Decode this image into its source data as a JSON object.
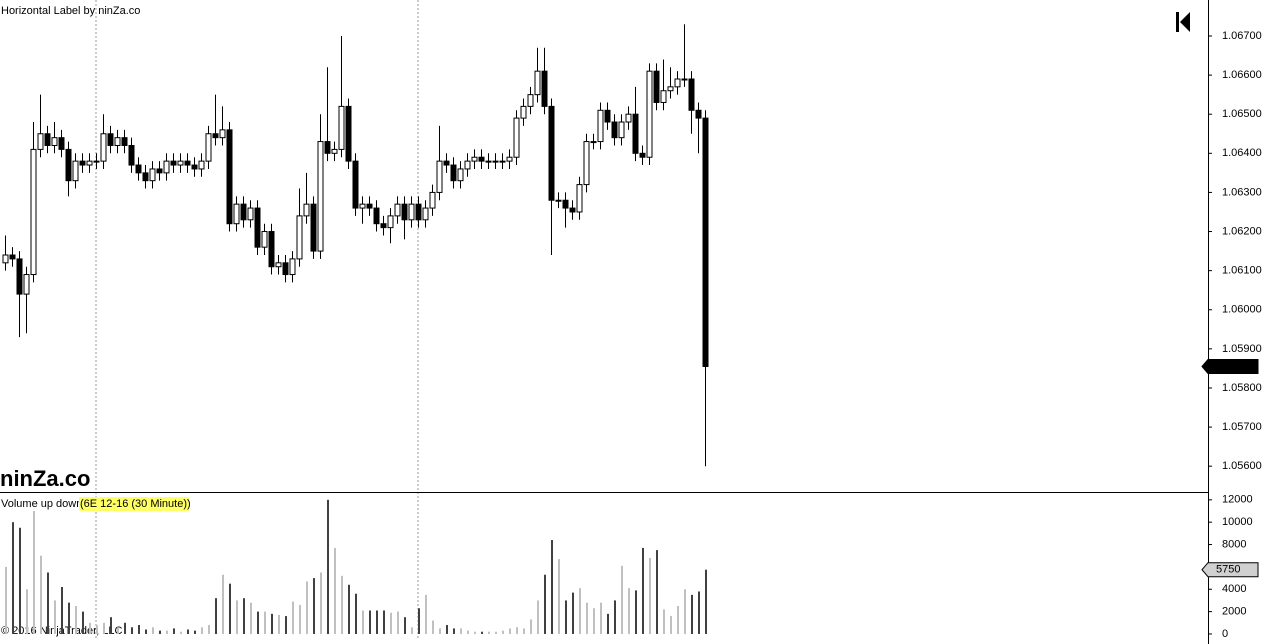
{
  "chart_data": [
    {
      "type": "candlestick",
      "title": "Horizontal Label by ninZa.co",
      "logo": "ninZa.co",
      "footer": "© 2016 NinjaTrader, LLC",
      "up_color": "#ffffff",
      "down_color": "#000000",
      "wick_color": "#000000",
      "ylim": [
        1.05534,
        1.06792
      ],
      "yticks": [
        {
          "value": 1.056,
          "label": "1.05600"
        },
        {
          "value": 1.057,
          "label": "1.05700"
        },
        {
          "value": 1.058,
          "label": "1.05800"
        },
        {
          "value": 1.059,
          "label": "1.05900"
        },
        {
          "value": 1.06,
          "label": "1.06000"
        },
        {
          "value": 1.061,
          "label": "1.06100"
        },
        {
          "value": 1.062,
          "label": "1.06200"
        },
        {
          "value": 1.063,
          "label": "1.06300"
        },
        {
          "value": 1.064,
          "label": "1.06400"
        },
        {
          "value": 1.065,
          "label": "1.06500"
        },
        {
          "value": 1.066,
          "label": "1.06600"
        },
        {
          "value": 1.067,
          "label": "1.06700"
        }
      ],
      "open": [
        1.0612,
        1.0614,
        1.0613,
        1.0604,
        1.0609,
        1.0641,
        1.0645,
        1.0642,
        1.0644,
        1.0641,
        1.0633,
        1.0638,
        1.0637,
        1.0638,
        1.0638,
        1.0645,
        1.0642,
        1.0644,
        1.0642,
        1.0637,
        1.0635,
        1.0633,
        1.0636,
        1.0635,
        1.0638,
        1.0637,
        1.0638,
        1.0637,
        1.0636,
        1.0638,
        1.0645,
        1.0644,
        1.0646,
        1.0622,
        1.0627,
        1.0623,
        1.0626,
        1.0616,
        1.062,
        1.0611,
        1.0612,
        1.0609,
        1.0613,
        1.0624,
        1.0627,
        1.0615,
        1.0643,
        1.064,
        1.0641,
        1.0652,
        1.0638,
        1.0626,
        1.0627,
        1.0626,
        1.0622,
        1.0621,
        1.0624,
        1.0627,
        1.0623,
        1.0627,
        1.0623,
        1.0626,
        1.063,
        1.0638,
        1.0637,
        1.0633,
        1.0636,
        1.0638,
        1.0639,
        1.0638,
        1.0638,
        1.0638,
        1.0638,
        1.0639,
        1.0649,
        1.0652,
        1.0655,
        1.0661,
        1.0652,
        1.0628,
        1.0628,
        1.0626,
        1.0625,
        1.0632,
        1.0643,
        1.0643,
        1.0651,
        1.0648,
        1.0644,
        1.0648,
        1.065,
        1.064,
        1.0639,
        1.0661,
        1.0653,
        1.0656,
        1.0657,
        1.0659,
        1.0659,
        1.0651,
        1.0649
      ],
      "high": [
        1.0619,
        1.0616,
        1.0615,
        1.0611,
        1.0648,
        1.0655,
        1.0647,
        1.0648,
        1.0646,
        1.0643,
        1.064,
        1.064,
        1.064,
        1.064,
        1.065,
        1.0647,
        1.0646,
        1.0646,
        1.0644,
        1.0639,
        1.0637,
        1.0638,
        1.0638,
        1.064,
        1.064,
        1.064,
        1.064,
        1.0639,
        1.064,
        1.0647,
        1.0655,
        1.0652,
        1.0648,
        1.0629,
        1.0629,
        1.0628,
        1.0628,
        1.0622,
        1.0622,
        1.0614,
        1.0614,
        1.0615,
        1.0631,
        1.0635,
        1.0629,
        1.065,
        1.0662,
        1.0643,
        1.067,
        1.0654,
        1.064,
        1.0629,
        1.0629,
        1.0628,
        1.0624,
        1.0626,
        1.0629,
        1.0629,
        1.0629,
        1.0629,
        1.0628,
        1.0632,
        1.0647,
        1.064,
        1.0639,
        1.0638,
        1.064,
        1.0641,
        1.0641,
        1.064,
        1.064,
        1.064,
        1.0641,
        1.0651,
        1.0654,
        1.0657,
        1.0667,
        1.0667,
        1.0654,
        1.063,
        1.063,
        1.0628,
        1.0634,
        1.0645,
        1.0645,
        1.0653,
        1.0653,
        1.065,
        1.065,
        1.0652,
        1.0657,
        1.0642,
        1.0663,
        1.0663,
        1.0664,
        1.0662,
        1.0661,
        1.0673,
        1.0661,
        1.0653,
        1.0651
      ],
      "low": [
        1.061,
        1.0611,
        1.0593,
        1.0594,
        1.0607,
        1.0639,
        1.064,
        1.064,
        1.0639,
        1.0629,
        1.0631,
        1.0635,
        1.0635,
        1.0636,
        1.0636,
        1.064,
        1.064,
        1.064,
        1.0635,
        1.0633,
        1.0631,
        1.0631,
        1.0633,
        1.0633,
        1.0635,
        1.0635,
        1.0635,
        1.0634,
        1.0634,
        1.0636,
        1.0642,
        1.0642,
        1.062,
        1.062,
        1.0621,
        1.0621,
        1.0614,
        1.0614,
        1.0609,
        1.0609,
        1.0607,
        1.0607,
        1.0611,
        1.0622,
        1.0613,
        1.0613,
        1.0638,
        1.0638,
        1.0639,
        1.0636,
        1.0624,
        1.0622,
        1.0624,
        1.062,
        1.0619,
        1.0617,
        1.0622,
        1.0618,
        1.0621,
        1.0621,
        1.0621,
        1.0624,
        1.0628,
        1.0635,
        1.0631,
        1.0631,
        1.0634,
        1.0636,
        1.0636,
        1.0636,
        1.0636,
        1.0636,
        1.0636,
        1.0637,
        1.0647,
        1.065,
        1.0653,
        1.065,
        1.0614,
        1.0626,
        1.0621,
        1.0623,
        1.0623,
        1.063,
        1.0641,
        1.0641,
        1.0646,
        1.0642,
        1.0642,
        1.0646,
        1.0638,
        1.0637,
        1.0637,
        1.0651,
        1.0651,
        1.0654,
        1.0655,
        1.0657,
        1.0645,
        1.064,
        1.056
      ],
      "close": [
        1.0614,
        1.0613,
        1.0604,
        1.0609,
        1.0641,
        1.0645,
        1.0642,
        1.0644,
        1.0641,
        1.0633,
        1.0638,
        1.0637,
        1.0638,
        1.0638,
        1.0645,
        1.0642,
        1.0644,
        1.0642,
        1.0637,
        1.0635,
        1.0633,
        1.0636,
        1.0635,
        1.0638,
        1.0637,
        1.0638,
        1.0637,
        1.0636,
        1.0638,
        1.0645,
        1.0644,
        1.0646,
        1.0622,
        1.0627,
        1.0623,
        1.0626,
        1.0616,
        1.062,
        1.0611,
        1.0612,
        1.0609,
        1.0613,
        1.0624,
        1.0627,
        1.0615,
        1.0643,
        1.064,
        1.0641,
        1.0652,
        1.0638,
        1.0626,
        1.0627,
        1.0626,
        1.0622,
        1.0621,
        1.0624,
        1.0627,
        1.0623,
        1.0627,
        1.0623,
        1.0626,
        1.063,
        1.0638,
        1.0637,
        1.0633,
        1.0636,
        1.0638,
        1.0639,
        1.0638,
        1.0638,
        1.0638,
        1.0638,
        1.0639,
        1.0649,
        1.0652,
        1.0655,
        1.0661,
        1.0652,
        1.0628,
        1.0628,
        1.0626,
        1.0625,
        1.0632,
        1.0643,
        1.0643,
        1.0651,
        1.0648,
        1.0644,
        1.0648,
        1.065,
        1.064,
        1.0639,
        1.0661,
        1.0653,
        1.0656,
        1.0657,
        1.0659,
        1.0659,
        1.0651,
        1.0649,
        1.05855
      ]
    },
    {
      "type": "bar",
      "title": "Volume up down",
      "subtitle": "(6E 12-16 (30 Minute))",
      "up_color": "#c0c0c0",
      "down_color": "#404040",
      "ylim": [
        -540,
        12700
      ],
      "yticks": [
        0,
        2000,
        4000,
        6000,
        8000,
        10000,
        12000
      ],
      "values": [
        6000,
        10000,
        9500,
        4000,
        11000,
        7000,
        5500,
        3000,
        4200,
        2800,
        2500,
        2000,
        1000,
        800,
        1000,
        1500,
        600,
        1000,
        600,
        800,
        400,
        600,
        300,
        300,
        500,
        200,
        400,
        300,
        600,
        800,
        3200,
        5300,
        4500,
        3000,
        3200,
        2800,
        2000,
        2000,
        1800,
        1700,
        1600,
        2900,
        2600,
        4700,
        5000,
        5500,
        12000,
        7700,
        5200,
        4400,
        3600,
        2100,
        2100,
        2100,
        2100,
        1900,
        2000,
        1500,
        600,
        2300,
        3500,
        1200,
        500,
        800,
        500,
        500,
        300,
        200,
        200,
        200,
        200,
        300,
        500,
        600,
        500,
        1300,
        3000,
        5300,
        8400,
        6700,
        3000,
        3700,
        4100,
        2800,
        2300,
        2800,
        1800,
        3000,
        6100,
        4100,
        3900,
        7700,
        6800,
        7500,
        2200,
        1600,
        2500,
        4000,
        3500,
        3800,
        5750
      ]
    }
  ]
}
